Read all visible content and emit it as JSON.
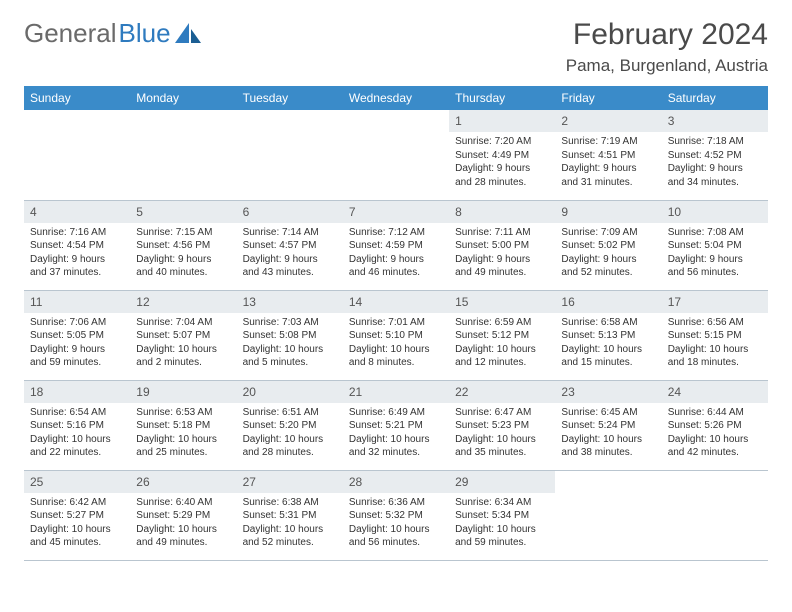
{
  "logo": {
    "text_gray": "General",
    "text_blue": "Blue"
  },
  "title": "February 2024",
  "location": "Pama, Burgenland, Austria",
  "colors": {
    "header_bg": "#3a8bc9",
    "header_text": "#ffffff",
    "daynum_bg": "#e8ecef",
    "border": "#b9c5cf",
    "logo_gray": "#6a6a6a",
    "logo_blue": "#2f7bbf"
  },
  "day_headers": [
    "Sunday",
    "Monday",
    "Tuesday",
    "Wednesday",
    "Thursday",
    "Friday",
    "Saturday"
  ],
  "weeks": [
    [
      {
        "empty": true
      },
      {
        "empty": true
      },
      {
        "empty": true
      },
      {
        "empty": true
      },
      {
        "num": "1",
        "sunrise": "Sunrise: 7:20 AM",
        "sunset": "Sunset: 4:49 PM",
        "day1": "Daylight: 9 hours",
        "day2": "and 28 minutes."
      },
      {
        "num": "2",
        "sunrise": "Sunrise: 7:19 AM",
        "sunset": "Sunset: 4:51 PM",
        "day1": "Daylight: 9 hours",
        "day2": "and 31 minutes."
      },
      {
        "num": "3",
        "sunrise": "Sunrise: 7:18 AM",
        "sunset": "Sunset: 4:52 PM",
        "day1": "Daylight: 9 hours",
        "day2": "and 34 minutes."
      }
    ],
    [
      {
        "num": "4",
        "sunrise": "Sunrise: 7:16 AM",
        "sunset": "Sunset: 4:54 PM",
        "day1": "Daylight: 9 hours",
        "day2": "and 37 minutes."
      },
      {
        "num": "5",
        "sunrise": "Sunrise: 7:15 AM",
        "sunset": "Sunset: 4:56 PM",
        "day1": "Daylight: 9 hours",
        "day2": "and 40 minutes."
      },
      {
        "num": "6",
        "sunrise": "Sunrise: 7:14 AM",
        "sunset": "Sunset: 4:57 PM",
        "day1": "Daylight: 9 hours",
        "day2": "and 43 minutes."
      },
      {
        "num": "7",
        "sunrise": "Sunrise: 7:12 AM",
        "sunset": "Sunset: 4:59 PM",
        "day1": "Daylight: 9 hours",
        "day2": "and 46 minutes."
      },
      {
        "num": "8",
        "sunrise": "Sunrise: 7:11 AM",
        "sunset": "Sunset: 5:00 PM",
        "day1": "Daylight: 9 hours",
        "day2": "and 49 minutes."
      },
      {
        "num": "9",
        "sunrise": "Sunrise: 7:09 AM",
        "sunset": "Sunset: 5:02 PM",
        "day1": "Daylight: 9 hours",
        "day2": "and 52 minutes."
      },
      {
        "num": "10",
        "sunrise": "Sunrise: 7:08 AM",
        "sunset": "Sunset: 5:04 PM",
        "day1": "Daylight: 9 hours",
        "day2": "and 56 minutes."
      }
    ],
    [
      {
        "num": "11",
        "sunrise": "Sunrise: 7:06 AM",
        "sunset": "Sunset: 5:05 PM",
        "day1": "Daylight: 9 hours",
        "day2": "and 59 minutes."
      },
      {
        "num": "12",
        "sunrise": "Sunrise: 7:04 AM",
        "sunset": "Sunset: 5:07 PM",
        "day1": "Daylight: 10 hours",
        "day2": "and 2 minutes."
      },
      {
        "num": "13",
        "sunrise": "Sunrise: 7:03 AM",
        "sunset": "Sunset: 5:08 PM",
        "day1": "Daylight: 10 hours",
        "day2": "and 5 minutes."
      },
      {
        "num": "14",
        "sunrise": "Sunrise: 7:01 AM",
        "sunset": "Sunset: 5:10 PM",
        "day1": "Daylight: 10 hours",
        "day2": "and 8 minutes."
      },
      {
        "num": "15",
        "sunrise": "Sunrise: 6:59 AM",
        "sunset": "Sunset: 5:12 PM",
        "day1": "Daylight: 10 hours",
        "day2": "and 12 minutes."
      },
      {
        "num": "16",
        "sunrise": "Sunrise: 6:58 AM",
        "sunset": "Sunset: 5:13 PM",
        "day1": "Daylight: 10 hours",
        "day2": "and 15 minutes."
      },
      {
        "num": "17",
        "sunrise": "Sunrise: 6:56 AM",
        "sunset": "Sunset: 5:15 PM",
        "day1": "Daylight: 10 hours",
        "day2": "and 18 minutes."
      }
    ],
    [
      {
        "num": "18",
        "sunrise": "Sunrise: 6:54 AM",
        "sunset": "Sunset: 5:16 PM",
        "day1": "Daylight: 10 hours",
        "day2": "and 22 minutes."
      },
      {
        "num": "19",
        "sunrise": "Sunrise: 6:53 AM",
        "sunset": "Sunset: 5:18 PM",
        "day1": "Daylight: 10 hours",
        "day2": "and 25 minutes."
      },
      {
        "num": "20",
        "sunrise": "Sunrise: 6:51 AM",
        "sunset": "Sunset: 5:20 PM",
        "day1": "Daylight: 10 hours",
        "day2": "and 28 minutes."
      },
      {
        "num": "21",
        "sunrise": "Sunrise: 6:49 AM",
        "sunset": "Sunset: 5:21 PM",
        "day1": "Daylight: 10 hours",
        "day2": "and 32 minutes."
      },
      {
        "num": "22",
        "sunrise": "Sunrise: 6:47 AM",
        "sunset": "Sunset: 5:23 PM",
        "day1": "Daylight: 10 hours",
        "day2": "and 35 minutes."
      },
      {
        "num": "23",
        "sunrise": "Sunrise: 6:45 AM",
        "sunset": "Sunset: 5:24 PM",
        "day1": "Daylight: 10 hours",
        "day2": "and 38 minutes."
      },
      {
        "num": "24",
        "sunrise": "Sunrise: 6:44 AM",
        "sunset": "Sunset: 5:26 PM",
        "day1": "Daylight: 10 hours",
        "day2": "and 42 minutes."
      }
    ],
    [
      {
        "num": "25",
        "sunrise": "Sunrise: 6:42 AM",
        "sunset": "Sunset: 5:27 PM",
        "day1": "Daylight: 10 hours",
        "day2": "and 45 minutes."
      },
      {
        "num": "26",
        "sunrise": "Sunrise: 6:40 AM",
        "sunset": "Sunset: 5:29 PM",
        "day1": "Daylight: 10 hours",
        "day2": "and 49 minutes."
      },
      {
        "num": "27",
        "sunrise": "Sunrise: 6:38 AM",
        "sunset": "Sunset: 5:31 PM",
        "day1": "Daylight: 10 hours",
        "day2": "and 52 minutes."
      },
      {
        "num": "28",
        "sunrise": "Sunrise: 6:36 AM",
        "sunset": "Sunset: 5:32 PM",
        "day1": "Daylight: 10 hours",
        "day2": "and 56 minutes."
      },
      {
        "num": "29",
        "sunrise": "Sunrise: 6:34 AM",
        "sunset": "Sunset: 5:34 PM",
        "day1": "Daylight: 10 hours",
        "day2": "and 59 minutes."
      },
      {
        "empty": true
      },
      {
        "empty": true
      }
    ]
  ]
}
